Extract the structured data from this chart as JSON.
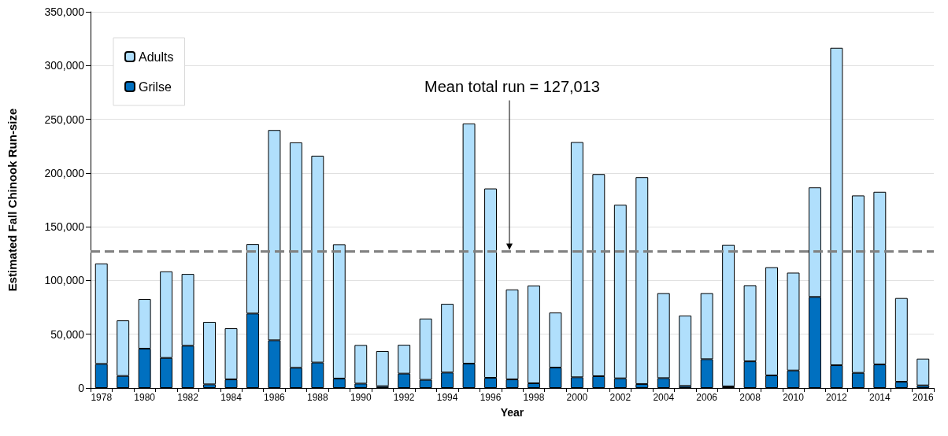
{
  "chart_data": {
    "type": "bar",
    "stacked": true,
    "xlabel": "Year",
    "ylabel": "Estimated Fall Chinook Run-size",
    "categories": [
      "1978",
      null,
      "1980",
      null,
      "1982",
      null,
      "1984",
      null,
      "1986",
      null,
      "1988",
      null,
      "1990",
      null,
      "1992",
      null,
      "1994",
      null,
      "1996",
      null,
      "1998",
      null,
      "2000",
      null,
      "2002",
      null,
      "2004",
      null,
      "2006",
      null,
      "2008",
      null,
      "2010",
      null,
      "2012",
      null,
      "2014",
      null,
      "2016"
    ],
    "series": [
      {
        "name": "Grilse",
        "color": "#0070c0",
        "values": [
          22400,
          11200,
          36600,
          28000,
          39300,
          3400,
          8000,
          69300,
          44400,
          18800,
          23700,
          8800,
          4100,
          1700,
          13400,
          7600,
          14400,
          22700,
          9500,
          8000,
          4400,
          19000,
          10000,
          11000,
          9000,
          3700,
          9200,
          1900,
          26800,
          1500,
          24800,
          11700,
          16300,
          84700,
          21200,
          14100,
          21900,
          5800,
          2400
        ]
      },
      {
        "name": "Adults",
        "color": "#b0dffc",
        "values": [
          93500,
          51700,
          46100,
          80500,
          66800,
          58100,
          47600,
          64600,
          195600,
          209700,
          192400,
          124900,
          35900,
          32700,
          26800,
          57000,
          63900,
          223400,
          176100,
          83700,
          91000,
          51200,
          218800,
          188000,
          161500,
          192400,
          79100,
          65500,
          61500,
          131800,
          70800,
          100700,
          91000,
          101900,
          295300,
          165000,
          160600,
          77900,
          24900
        ]
      }
    ],
    "ylim": [
      0,
      350000
    ],
    "yticks": [
      0,
      {
        "value": 50000,
        "label": "50,000"
      },
      {
        "value": 100000,
        "label": "100,000"
      },
      {
        "value": 150000,
        "label": "150,000"
      },
      {
        "value": 200000,
        "label": "200,000"
      },
      {
        "value": 250000,
        "label": "250,000"
      },
      {
        "value": 300000,
        "label": "300,000"
      },
      {
        "value": 350000,
        "label": "350,000"
      }
    ],
    "grid": "y",
    "legend": "top left",
    "ref_lines": [
      {
        "axis": "y",
        "value": 127013,
        "label": "Mean total run = 127,013",
        "color": "#808080",
        "line_style": "dashed"
      }
    ]
  }
}
